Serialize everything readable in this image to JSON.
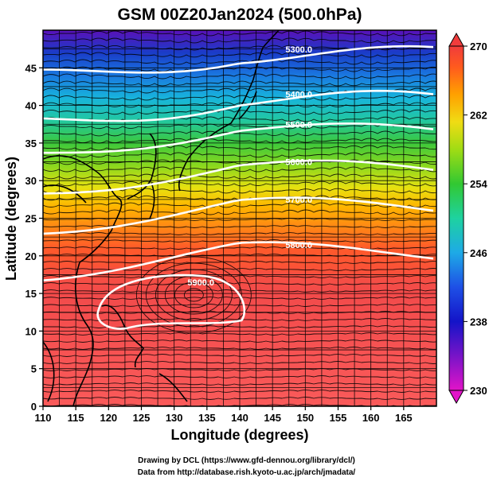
{
  "title": "GSM 00Z20Jan2024 (500.0hPa)",
  "map": {
    "xlabel": "Longitude (degrees)",
    "ylabel": "Latitude  (degrees)",
    "lon_range": [
      110,
      170
    ],
    "lat_range": [
      0,
      50
    ],
    "lon_ticks": [
      "110",
      "115",
      "120",
      "125",
      "130",
      "135",
      "140",
      "145",
      "150",
      "155",
      "160",
      "165"
    ],
    "lat_ticks": [
      "0",
      "5",
      "10",
      "15",
      "20",
      "25",
      "30",
      "35",
      "40",
      "45"
    ],
    "grid": true,
    "field": "temperature (color shading, K)",
    "overlays": [
      "wind streamlines (black)",
      "geopotential height contours (white)",
      "coastlines (black)"
    ]
  },
  "contours": [
    {
      "label": "5300.0",
      "lat_at_150E": 46
    },
    {
      "label": "5400.0",
      "lat_at_150E": 40
    },
    {
      "label": "5500.0",
      "lat_at_150E": 36
    },
    {
      "label": "5600.0",
      "lat_at_150E": 31
    },
    {
      "label": "5700.0",
      "lat_at_150E": 26
    },
    {
      "label": "5800.0",
      "lat_at_150E": 20
    },
    {
      "label": "5900.0",
      "closed_high_center": [
        133,
        14.8
      ]
    }
  ],
  "colorbar": {
    "min": 230,
    "max": 270,
    "ticks": [
      "230",
      "238",
      "246",
      "254",
      "262",
      "270"
    ],
    "colors": [
      "#c800c8",
      "#4b00c8",
      "#0a2ac8",
      "#1a7ae0",
      "#1ec8c8",
      "#2ec870",
      "#6adc1e",
      "#dcdc14",
      "#ffaa00",
      "#ff6414",
      "#f03232",
      "#ff5050"
    ]
  },
  "credits": {
    "line1": "Drawing by DCL (https://www.gfd-dennou.org/library/dcl/)",
    "line2": "Data from http://database.rish.kyoto-u.ac.jp/arch/jmadata/"
  }
}
